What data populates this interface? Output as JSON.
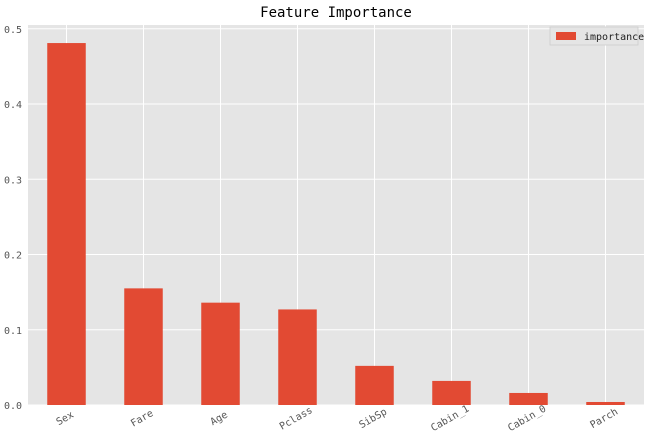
{
  "chart_data": {
    "type": "bar",
    "title": "Feature Importance",
    "xlabel": "",
    "ylabel": "",
    "categories": [
      "Sex",
      "Fare",
      "Age",
      "Pclass",
      "SibSp",
      "Cabin_1",
      "Cabin_0",
      "Parch"
    ],
    "series": [
      {
        "name": "importance",
        "values": [
          0.481,
          0.155,
          0.136,
          0.127,
          0.052,
          0.032,
          0.016,
          0.004
        ]
      }
    ],
    "ylim": [
      0,
      0.505
    ],
    "yticks": [
      0.0,
      0.1,
      0.2,
      0.3,
      0.4,
      0.5
    ],
    "ytick_labels": [
      "0.0",
      "0.1",
      "0.2",
      "0.3",
      "0.4",
      "0.5"
    ],
    "grid": true,
    "legend_position": "top-right",
    "colors": {
      "bar": "#e24a33",
      "plot_background": "#e5e5e5",
      "grid": "#ffffff"
    }
  }
}
